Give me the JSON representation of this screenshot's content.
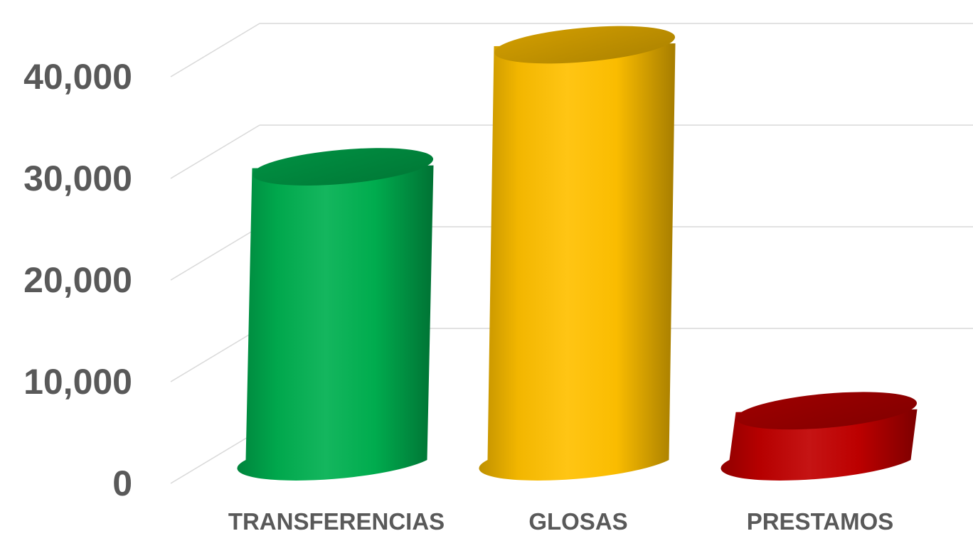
{
  "chart_data": {
    "type": "bar",
    "style": "3d-cylinder",
    "categories": [
      "TRANSFERENCIAS",
      "GLOSAS",
      "PRESTAMOS"
    ],
    "values": [
      28000,
      40000,
      4000
    ],
    "bar_colors": [
      "#00b050",
      "#ffc000",
      "#c00000"
    ],
    "y_ticks": [
      "0",
      "10,000",
      "20,000",
      "30,000",
      "40,000"
    ],
    "y_tick_values": [
      0,
      10000,
      20000,
      30000,
      40000
    ],
    "ylim": [
      0,
      50000
    ],
    "grid": true,
    "legend": "none",
    "title": "",
    "xlabel": "",
    "ylabel": ""
  }
}
